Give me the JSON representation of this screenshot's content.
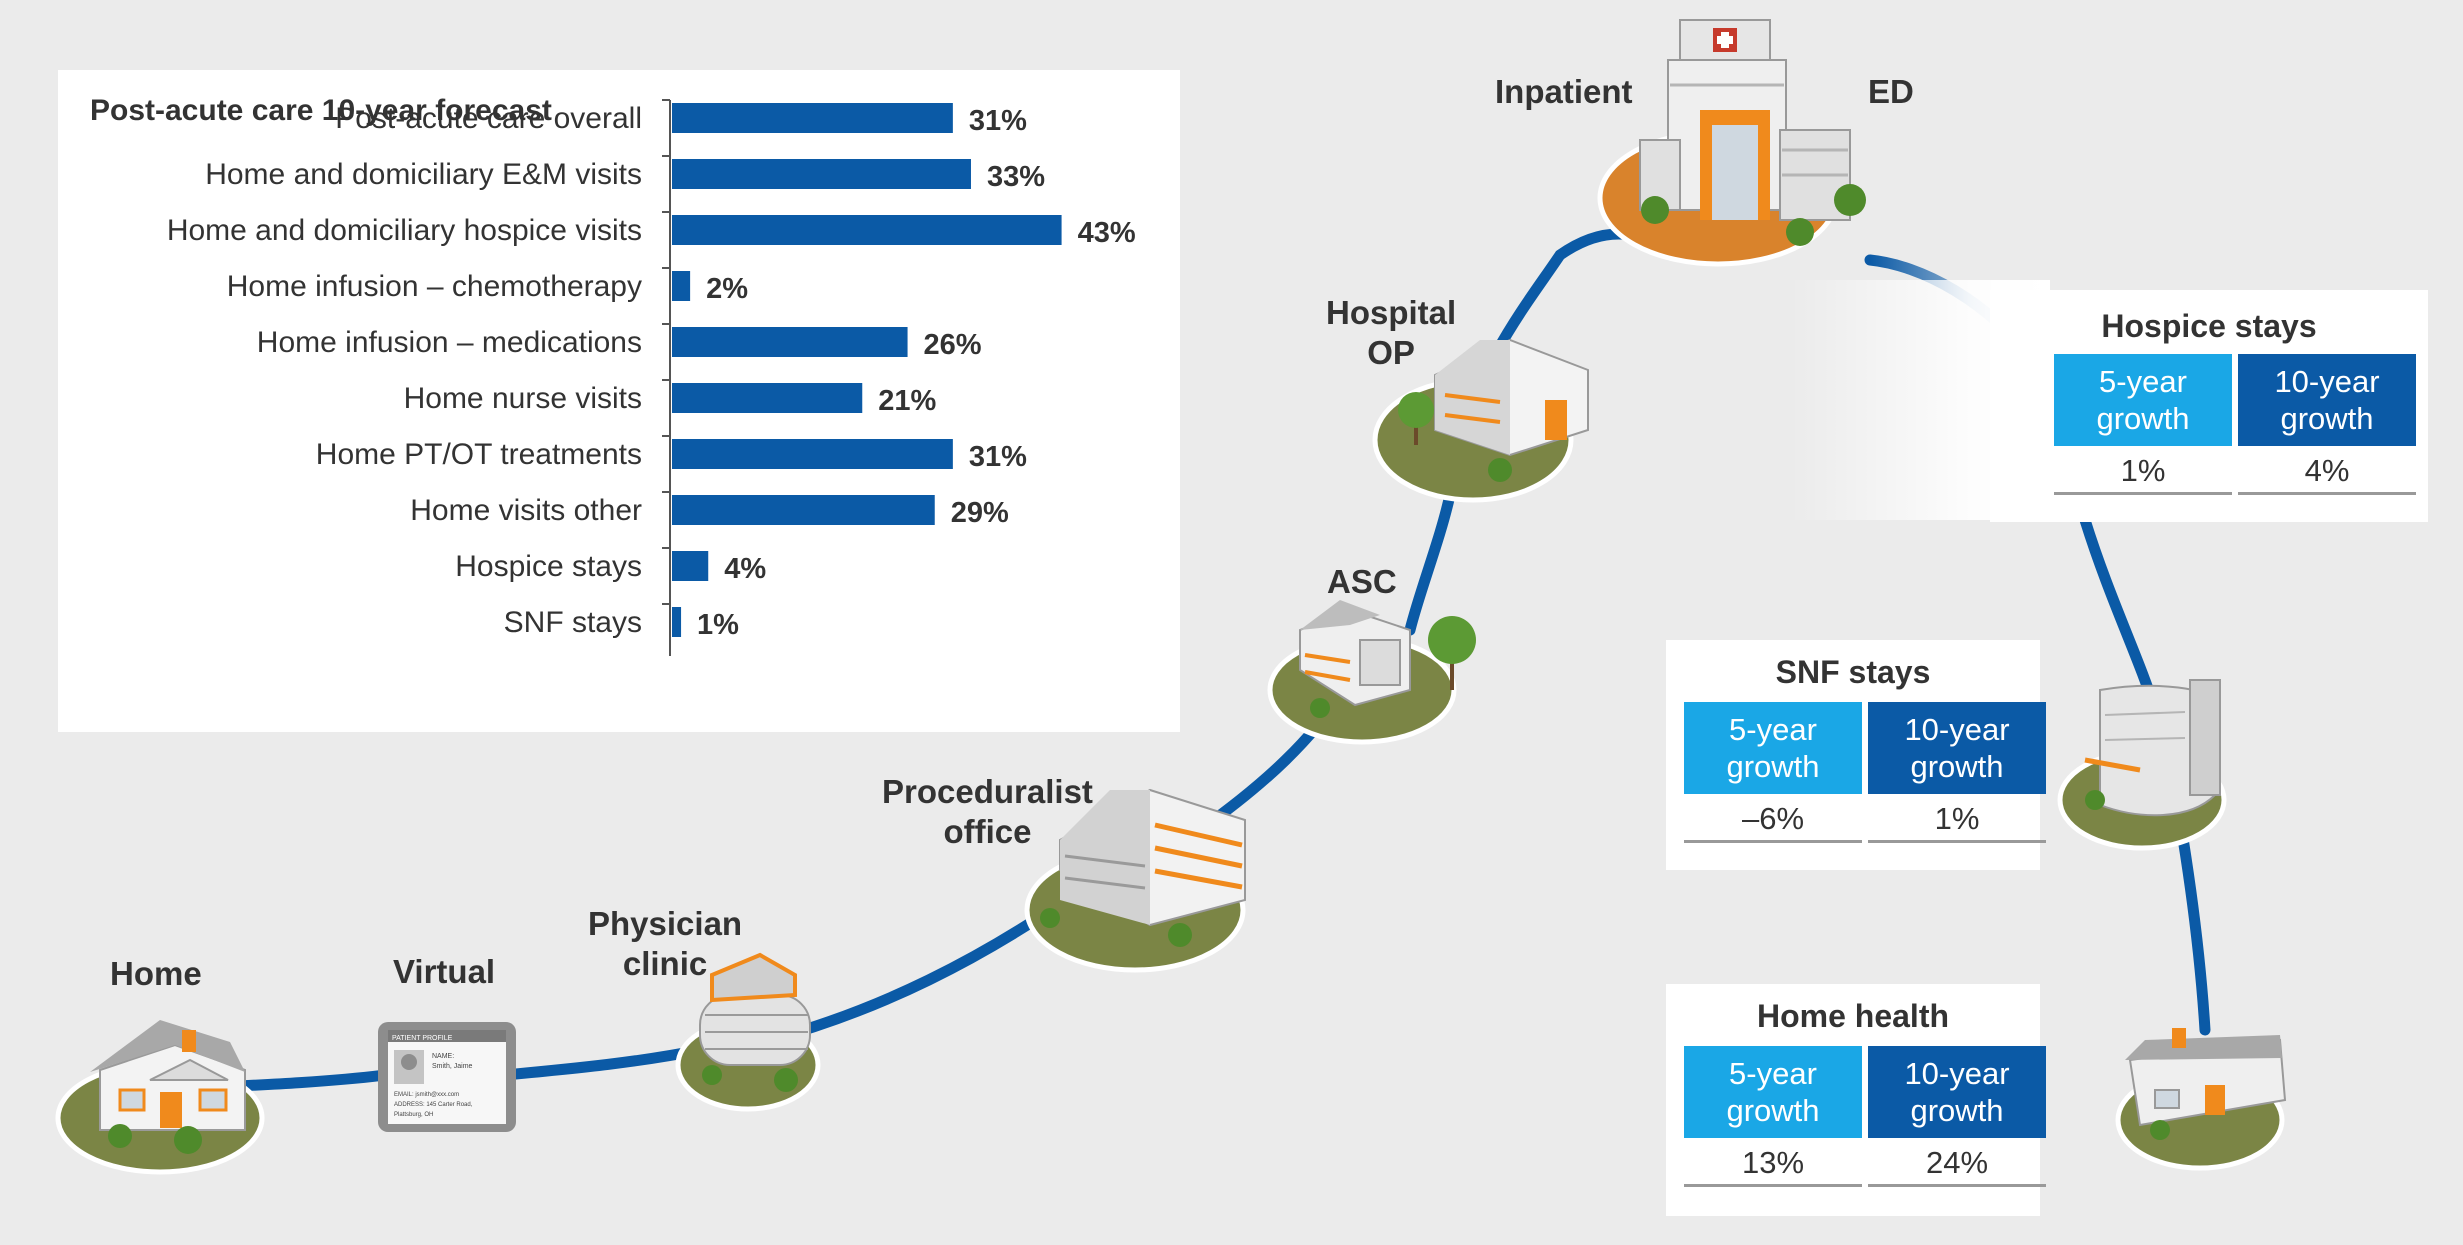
{
  "colors": {
    "background": "#ebebeb",
    "bar": "#0b5aa6",
    "path": "#0b5aa6",
    "five_year": "#1aa7e6",
    "ten_year": "#0b5aa6",
    "ground": "#7b8545",
    "orange": "#f08a1c"
  },
  "chart_data": {
    "type": "bar",
    "orientation": "horizontal",
    "title": "Post-acute care 10-year forecast",
    "categories": [
      "Post-acute care overall",
      "Home and domiciliary E&M visits",
      "Home and domiciliary hospice visits",
      "Home infusion – chemotherapy",
      "Home infusion – medications",
      "Home nurse visits",
      "Home PT/OT treatments",
      "Home visits other",
      "Hospice stays",
      "SNF stays"
    ],
    "values": [
      31,
      33,
      43,
      2,
      26,
      21,
      31,
      29,
      4,
      1
    ],
    "data_labels": [
      "31%",
      "33%",
      "43%",
      "2%",
      "26%",
      "21%",
      "31%",
      "29%",
      "4%",
      "1%"
    ],
    "xlim": [
      0,
      50
    ],
    "grid": false,
    "legend": "none"
  },
  "care_sites": [
    {
      "key": "home",
      "label": "Home",
      "icon": "house-icon"
    },
    {
      "key": "virtual",
      "label": "Virtual",
      "icon": "tablet-profile-icon"
    },
    {
      "key": "physician-clinic",
      "label": "Physician\nclinic",
      "icon": "clinic-building-icon"
    },
    {
      "key": "proceduralist-office",
      "label": "Proceduralist\noffice",
      "icon": "office-building-icon"
    },
    {
      "key": "asc",
      "label": "ASC",
      "icon": "asc-building-icon"
    },
    {
      "key": "hospital-op",
      "label": "Hospital\nOP",
      "icon": "hospital-op-building-icon"
    },
    {
      "key": "inpatient",
      "label": "Inpatient",
      "icon": "hospital-icon"
    },
    {
      "key": "ed",
      "label": "ED",
      "icon": "hospital-icon"
    }
  ],
  "stat_cards": [
    {
      "title": "Hospice stays",
      "five_label": "5-year\ngrowth",
      "ten_label": "10-year\ngrowth",
      "five_value": "1%",
      "ten_value": "4%"
    },
    {
      "title": "SNF stays",
      "five_label": "5-year\ngrowth",
      "ten_label": "10-year\ngrowth",
      "five_value": "–6%",
      "ten_value": "1%"
    },
    {
      "title": "Home health",
      "five_label": "5-year\ngrowth",
      "ten_label": "10-year\ngrowth",
      "five_value": "13%",
      "ten_value": "24%"
    }
  ],
  "tablet": {
    "header": "PATIENT PROFILE",
    "name_label": "NAME:",
    "name_value": "Smith, Jaime",
    "email_line": "EMAIL: jsmith@xxx.com",
    "address_line": "ADDRESS: 145 Carter Road,",
    "city_line": "Plattsburg, OH"
  }
}
